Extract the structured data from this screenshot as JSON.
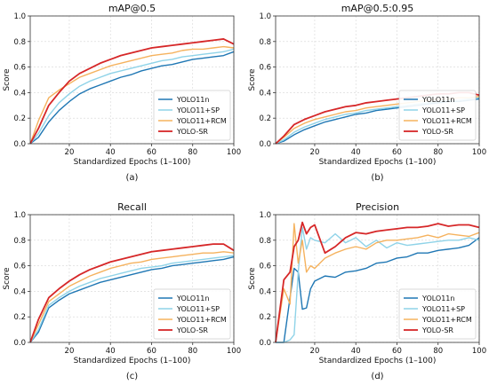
{
  "colors": {
    "YOLO11n": "#1f77b4",
    "YOLO11+SP": "#8fd3e8",
    "YOLO11+RCM": "#f5b25e",
    "YOLO-SR": "#d62728"
  },
  "chart_data": [
    {
      "type": "line",
      "title": "mAP@0.5",
      "caption": "(a)",
      "xlabel": "Standardized Epochs (1–100)",
      "ylabel": "Score",
      "xlim": [
        1,
        100
      ],
      "ylim": [
        0,
        1.0
      ],
      "xticks": [
        20,
        40,
        60,
        80,
        100
      ],
      "yticks": [
        0.0,
        0.2,
        0.4,
        0.6,
        0.8,
        1.0
      ],
      "legend": "lower-right",
      "x": [
        1,
        5,
        10,
        15,
        20,
        25,
        30,
        35,
        40,
        45,
        50,
        55,
        60,
        65,
        70,
        75,
        80,
        85,
        90,
        95,
        100
      ],
      "series": [
        {
          "name": "YOLO11n",
          "values": [
            0.0,
            0.05,
            0.17,
            0.26,
            0.33,
            0.39,
            0.43,
            0.46,
            0.49,
            0.52,
            0.54,
            0.57,
            0.59,
            0.61,
            0.62,
            0.64,
            0.66,
            0.67,
            0.68,
            0.69,
            0.72
          ]
        },
        {
          "name": "YOLO11+SP",
          "values": [
            0.0,
            0.08,
            0.22,
            0.32,
            0.39,
            0.45,
            0.49,
            0.52,
            0.55,
            0.57,
            0.59,
            0.61,
            0.63,
            0.65,
            0.66,
            0.68,
            0.69,
            0.7,
            0.71,
            0.72,
            0.74
          ]
        },
        {
          "name": "YOLO11+RCM",
          "values": [
            0.0,
            0.18,
            0.36,
            0.42,
            0.47,
            0.52,
            0.55,
            0.58,
            0.61,
            0.63,
            0.65,
            0.67,
            0.69,
            0.7,
            0.71,
            0.73,
            0.74,
            0.74,
            0.75,
            0.76,
            0.75
          ]
        },
        {
          "name": "YOLO-SR",
          "values": [
            0.0,
            0.12,
            0.3,
            0.4,
            0.49,
            0.55,
            0.59,
            0.63,
            0.66,
            0.69,
            0.71,
            0.73,
            0.75,
            0.76,
            0.77,
            0.78,
            0.79,
            0.8,
            0.81,
            0.82,
            0.78
          ]
        }
      ]
    },
    {
      "type": "line",
      "title": "mAP@0.5:0.95",
      "caption": "(b)",
      "xlabel": "Standardized Epochs (1–100)",
      "ylabel": "Score",
      "xlim": [
        1,
        100
      ],
      "ylim": [
        0,
        1.0
      ],
      "xticks": [
        20,
        40,
        60,
        80,
        100
      ],
      "yticks": [
        0.0,
        0.2,
        0.4,
        0.6,
        0.8,
        1.0
      ],
      "legend": "lower-right",
      "x": [
        1,
        5,
        10,
        15,
        20,
        25,
        30,
        35,
        40,
        45,
        50,
        55,
        60,
        65,
        70,
        75,
        80,
        85,
        90,
        95,
        100
      ],
      "series": [
        {
          "name": "YOLO11n",
          "values": [
            0.0,
            0.02,
            0.07,
            0.11,
            0.14,
            0.17,
            0.19,
            0.21,
            0.23,
            0.24,
            0.26,
            0.27,
            0.28,
            0.29,
            0.3,
            0.31,
            0.32,
            0.33,
            0.33,
            0.34,
            0.35
          ]
        },
        {
          "name": "YOLO11+SP",
          "values": [
            0.0,
            0.03,
            0.09,
            0.13,
            0.16,
            0.19,
            0.21,
            0.23,
            0.24,
            0.26,
            0.27,
            0.28,
            0.29,
            0.3,
            0.31,
            0.32,
            0.33,
            0.34,
            0.34,
            0.35,
            0.36
          ]
        },
        {
          "name": "YOLO11+RCM",
          "values": [
            0.0,
            0.05,
            0.12,
            0.16,
            0.19,
            0.21,
            0.23,
            0.25,
            0.26,
            0.28,
            0.29,
            0.3,
            0.31,
            0.32,
            0.33,
            0.34,
            0.35,
            0.35,
            0.36,
            0.36,
            0.37
          ]
        },
        {
          "name": "YOLO-SR",
          "values": [
            0.0,
            0.06,
            0.15,
            0.19,
            0.22,
            0.25,
            0.27,
            0.29,
            0.3,
            0.32,
            0.33,
            0.34,
            0.35,
            0.36,
            0.37,
            0.38,
            0.39,
            0.39,
            0.4,
            0.4,
            0.38
          ]
        }
      ]
    },
    {
      "type": "line",
      "title": "Recall",
      "caption": "(c)",
      "xlabel": "Standardized Epochs (1–100)",
      "ylabel": "Score",
      "xlim": [
        1,
        100
      ],
      "ylim": [
        0,
        1.0
      ],
      "xticks": [
        20,
        40,
        60,
        80,
        100
      ],
      "yticks": [
        0.0,
        0.2,
        0.4,
        0.6,
        0.8,
        1.0
      ],
      "legend": "lower-right",
      "x": [
        1,
        5,
        10,
        15,
        20,
        25,
        30,
        35,
        40,
        45,
        50,
        55,
        60,
        65,
        70,
        75,
        80,
        85,
        90,
        95,
        100
      ],
      "series": [
        {
          "name": "YOLO11n",
          "values": [
            0.0,
            0.08,
            0.27,
            0.33,
            0.38,
            0.41,
            0.44,
            0.47,
            0.49,
            0.51,
            0.53,
            0.55,
            0.57,
            0.58,
            0.6,
            0.61,
            0.62,
            0.63,
            0.64,
            0.65,
            0.67
          ]
        },
        {
          "name": "YOLO11+SP",
          "values": [
            0.0,
            0.1,
            0.29,
            0.35,
            0.4,
            0.44,
            0.47,
            0.5,
            0.52,
            0.54,
            0.56,
            0.58,
            0.59,
            0.6,
            0.62,
            0.63,
            0.64,
            0.65,
            0.66,
            0.67,
            0.68
          ]
        },
        {
          "name": "YOLO11+RCM",
          "values": [
            0.0,
            0.14,
            0.32,
            0.38,
            0.44,
            0.48,
            0.52,
            0.55,
            0.58,
            0.6,
            0.62,
            0.63,
            0.65,
            0.66,
            0.67,
            0.68,
            0.69,
            0.7,
            0.7,
            0.71,
            0.7
          ]
        },
        {
          "name": "YOLO-SR",
          "values": [
            0.0,
            0.18,
            0.35,
            0.42,
            0.48,
            0.53,
            0.57,
            0.6,
            0.63,
            0.65,
            0.67,
            0.69,
            0.71,
            0.72,
            0.73,
            0.74,
            0.75,
            0.76,
            0.77,
            0.77,
            0.72
          ]
        }
      ]
    },
    {
      "type": "line",
      "title": "Precision",
      "caption": "(d)",
      "xlabel": "Standardized Epochs (1–100)",
      "ylabel": "Score",
      "xlim": [
        1,
        100
      ],
      "ylim": [
        0,
        1.0
      ],
      "xticks": [
        20,
        40,
        60,
        80,
        100
      ],
      "yticks": [
        0.0,
        0.2,
        0.4,
        0.6,
        0.8,
        1.0
      ],
      "legend": "lower-right",
      "x": [
        1,
        5,
        8,
        10,
        12,
        14,
        16,
        18,
        20,
        25,
        30,
        35,
        40,
        45,
        50,
        55,
        60,
        65,
        70,
        75,
        80,
        85,
        90,
        95,
        100
      ],
      "series": [
        {
          "name": "YOLO11n",
          "values": [
            0.0,
            0.0,
            0.35,
            0.58,
            0.55,
            0.26,
            0.27,
            0.42,
            0.48,
            0.52,
            0.51,
            0.55,
            0.56,
            0.58,
            0.62,
            0.63,
            0.66,
            0.67,
            0.7,
            0.7,
            0.72,
            0.73,
            0.74,
            0.76,
            0.82
          ]
        },
        {
          "name": "YOLO11+SP",
          "values": [
            0.0,
            0.0,
            0.02,
            0.06,
            0.55,
            0.9,
            0.73,
            0.82,
            0.8,
            0.78,
            0.85,
            0.78,
            0.82,
            0.75,
            0.8,
            0.74,
            0.78,
            0.76,
            0.77,
            0.78,
            0.79,
            0.8,
            0.8,
            0.82,
            0.8
          ]
        },
        {
          "name": "YOLO11+RCM",
          "values": [
            0.0,
            0.42,
            0.3,
            0.93,
            0.62,
            0.8,
            0.55,
            0.6,
            0.58,
            0.66,
            0.7,
            0.73,
            0.75,
            0.73,
            0.78,
            0.8,
            0.8,
            0.81,
            0.82,
            0.84,
            0.82,
            0.85,
            0.84,
            0.83,
            0.86
          ]
        },
        {
          "name": "YOLO-SR",
          "values": [
            0.0,
            0.49,
            0.55,
            0.75,
            0.8,
            0.94,
            0.85,
            0.9,
            0.92,
            0.7,
            0.75,
            0.82,
            0.86,
            0.85,
            0.87,
            0.88,
            0.89,
            0.9,
            0.9,
            0.91,
            0.93,
            0.91,
            0.92,
            0.92,
            0.9
          ]
        }
      ]
    }
  ]
}
